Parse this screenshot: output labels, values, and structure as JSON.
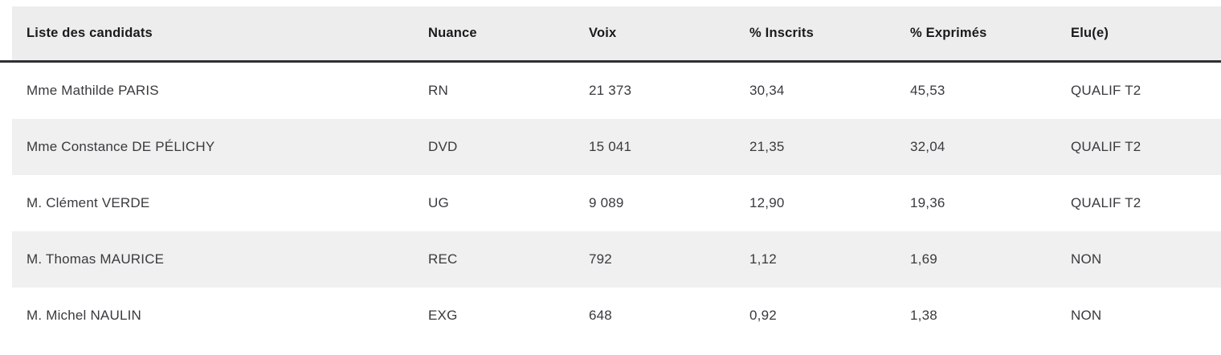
{
  "table": {
    "columns": [
      "Liste des candidats",
      "Nuance",
      "Voix",
      "% Inscrits",
      "% Exprimés",
      "Elu(e)"
    ],
    "rows": [
      {
        "candidate": "Mme Mathilde PARIS",
        "nuance": "RN",
        "voix": "21 373",
        "pct_inscrits": "30,34",
        "pct_exprimes": "45,53",
        "elu": "QUALIF T2"
      },
      {
        "candidate": "Mme Constance DE PÉLICHY",
        "nuance": "DVD",
        "voix": "15 041",
        "pct_inscrits": "21,35",
        "pct_exprimes": "32,04",
        "elu": "QUALIF T2"
      },
      {
        "candidate": "M. Clément VERDE",
        "nuance": "UG",
        "voix": "9 089",
        "pct_inscrits": "12,90",
        "pct_exprimes": "19,36",
        "elu": "QUALIF T2"
      },
      {
        "candidate": "M. Thomas MAURICE",
        "nuance": "REC",
        "voix": "792",
        "pct_inscrits": "1,12",
        "pct_exprimes": "1,69",
        "elu": "NON"
      },
      {
        "candidate": "M. Michel NAULIN",
        "nuance": "EXG",
        "voix": "648",
        "pct_inscrits": "0,92",
        "pct_exprimes": "1,38",
        "elu": "NON"
      }
    ]
  },
  "colors": {
    "header_bg": "#ededed",
    "alt_row_bg": "#f0f0f0",
    "divider": "#2f2f33",
    "header_text": "#1a1a1e",
    "cell_text": "#3a3a3e"
  }
}
